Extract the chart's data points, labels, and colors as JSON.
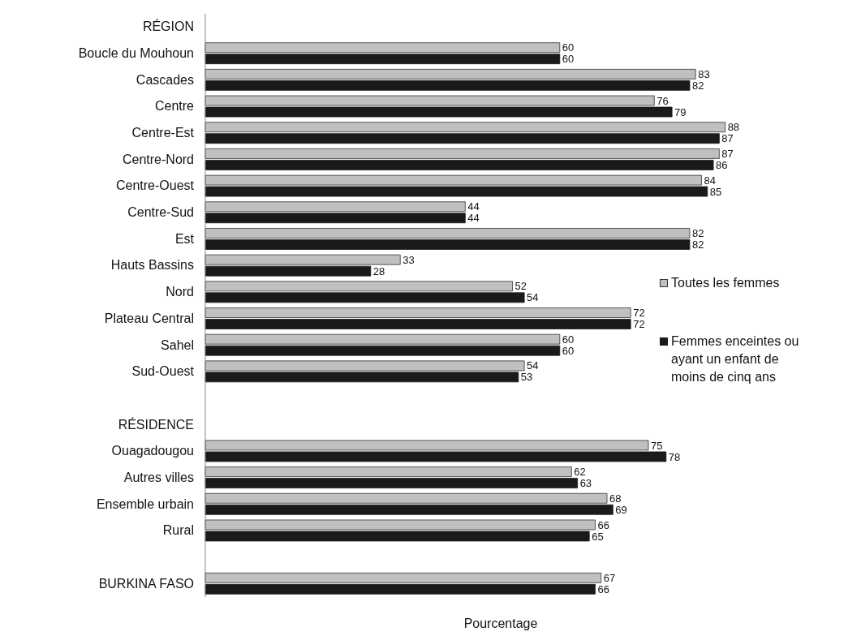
{
  "chart_data": {
    "type": "bar",
    "orientation": "horizontal",
    "xlabel": "Pourcentage",
    "categories": [
      "RÉGION",
      "Boucle du Mouhoun",
      "Cascades",
      "Centre",
      "Centre-Est",
      "Centre-Nord",
      "Centre-Ouest",
      "Centre-Sud",
      "Est",
      "Hauts Bassins",
      "Nord",
      "Plateau Central",
      "Sahel",
      "Sud-Ouest",
      null,
      "RÉSIDENCE",
      "Ouagadougou",
      "Autres villes",
      "Ensemble urbain",
      "Rural",
      null,
      "BURKINA FASO"
    ],
    "series": [
      {
        "name": "Toutes les femmes",
        "color": "#c0c0c0",
        "values": [
          null,
          60,
          83,
          76,
          88,
          87,
          84,
          44,
          82,
          33,
          52,
          72,
          60,
          54,
          null,
          null,
          75,
          62,
          68,
          66,
          null,
          67
        ]
      },
      {
        "name": "Femmes enceintes ou ayant un enfant de moins de cinq ans",
        "color": "#1a1a1a",
        "values": [
          null,
          60,
          82,
          79,
          87,
          86,
          85,
          44,
          82,
          28,
          54,
          72,
          60,
          53,
          null,
          null,
          78,
          63,
          69,
          65,
          null,
          66
        ]
      }
    ],
    "data_labels": true,
    "legend": "right"
  }
}
